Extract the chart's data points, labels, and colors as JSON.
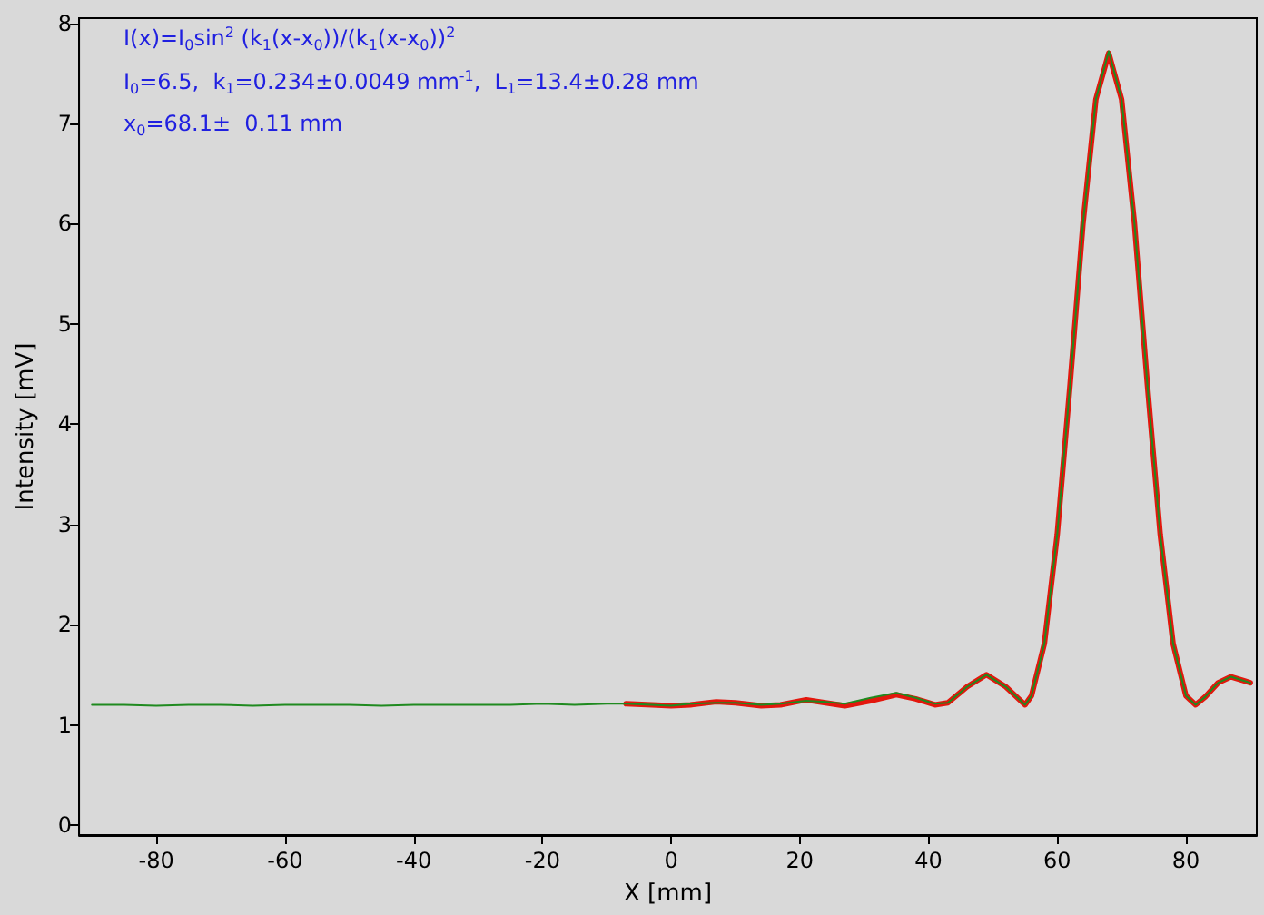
{
  "chart_data": {
    "type": "line",
    "xlabel": "X [mm]",
    "ylabel": "Intensity [mV]",
    "annotations": [
      "I(x)=I$_{0}$sin$^{2}$ (k$_{1}$(x-x$_{0}$))/(k$_{1}$(x-x$_{0}$))$^{2}$",
      "I$_{0}$=6.5,  k$_{1}$=0.234±0.0049 mm$^{-1}$,  L$_{1}$=13.4±0.28 mm",
      "x$_{0}$=68.1±  0.11 mm"
    ],
    "xlim": [
      -92,
      91
    ],
    "xticks": [
      -80,
      -60,
      -40,
      -20,
      0,
      20,
      40,
      60,
      80
    ],
    "ylim": [
      -0.1,
      8.05
    ],
    "yticks": [
      0,
      1,
      2,
      3,
      4,
      5,
      6,
      7,
      8
    ],
    "grid": false,
    "marker": "none",
    "line_style": "solid",
    "series": [
      {
        "color": "#1f8a1f",
        "x": [
          -90,
          -85,
          -80,
          -75,
          -70,
          -65,
          -60,
          -55,
          -50,
          -45,
          -40,
          -35,
          -30,
          -25,
          -20,
          -15,
          -10,
          -7,
          -3,
          0,
          3,
          7,
          10,
          14,
          17,
          21,
          24,
          27,
          31,
          35,
          38,
          41,
          43,
          46,
          49,
          52,
          55,
          56,
          58,
          60,
          62,
          64,
          66,
          68,
          70,
          72,
          74,
          76,
          78,
          80,
          81.5,
          83,
          85,
          87,
          89,
          90
        ],
        "values": [
          1.2,
          1.2,
          1.19,
          1.2,
          1.2,
          1.19,
          1.2,
          1.2,
          1.2,
          1.19,
          1.2,
          1.2,
          1.2,
          1.2,
          1.21,
          1.2,
          1.21,
          1.21,
          1.2,
          1.19,
          1.21,
          1.22,
          1.22,
          1.2,
          1.21,
          1.24,
          1.23,
          1.21,
          1.27,
          1.32,
          1.27,
          1.21,
          1.22,
          1.38,
          1.5,
          1.38,
          1.2,
          1.29,
          1.81,
          2.9,
          4.4,
          6.0,
          7.24,
          7.72,
          7.24,
          6.0,
          4.4,
          2.9,
          1.81,
          1.29,
          1.2,
          1.28,
          1.42,
          1.48,
          1.44,
          1.42
        ]
      },
      {
        "color": "#e3170d",
        "x": [
          -7,
          -3,
          0,
          3,
          7,
          10,
          14,
          17,
          21,
          24,
          27,
          31,
          35,
          38,
          41,
          43,
          46,
          49,
          52,
          55,
          56,
          58,
          60,
          62,
          64,
          66,
          68,
          70,
          72,
          74,
          76,
          78,
          80,
          81.5,
          83,
          85,
          87,
          89,
          90
        ],
        "values": [
          1.21,
          1.2,
          1.19,
          1.2,
          1.23,
          1.22,
          1.19,
          1.2,
          1.25,
          1.22,
          1.19,
          1.24,
          1.3,
          1.26,
          1.2,
          1.22,
          1.38,
          1.5,
          1.38,
          1.2,
          1.29,
          1.81,
          2.9,
          4.4,
          6.0,
          7.24,
          7.7,
          7.24,
          6.0,
          4.4,
          2.9,
          1.81,
          1.29,
          1.2,
          1.28,
          1.42,
          1.48,
          1.44,
          1.42
        ]
      }
    ]
  }
}
